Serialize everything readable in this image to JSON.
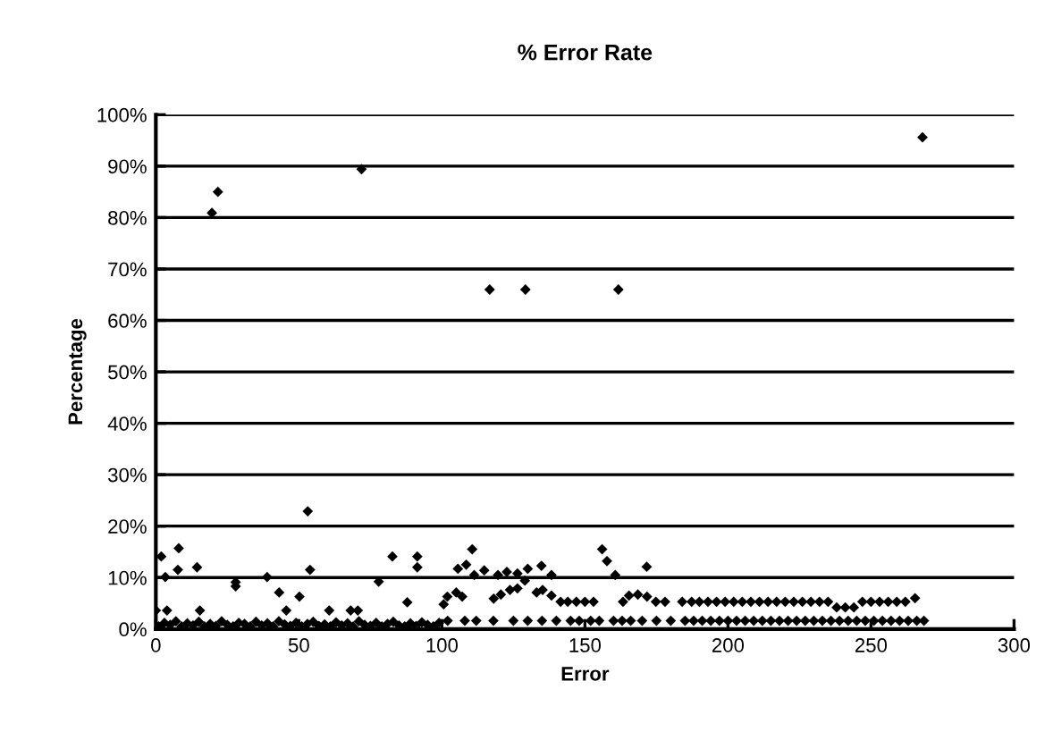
{
  "chart_data": {
    "type": "scatter",
    "title": "% Error Rate",
    "xlabel": "Error",
    "ylabel": "Percentage",
    "xlim": [
      0,
      300
    ],
    "xticks": [
      0,
      50,
      100,
      150,
      200,
      250,
      300
    ],
    "ylim": [
      0,
      100
    ],
    "yticks": [
      {
        "value": 0,
        "label": "0%"
      },
      {
        "value": 10,
        "label": "10%"
      },
      {
        "value": 20,
        "label": "20%"
      },
      {
        "value": 30,
        "label": "30%"
      },
      {
        "value": 40,
        "label": "40%"
      },
      {
        "value": 50,
        "label": "50%"
      },
      {
        "value": 60,
        "label": "60%"
      },
      {
        "value": 70,
        "label": "70%"
      },
      {
        "value": 80,
        "label": "80%"
      },
      {
        "value": 90,
        "label": "90%"
      },
      {
        "value": 100,
        "label": "100%"
      }
    ],
    "grid": "y",
    "legend": false,
    "marker": "diamond",
    "series": [
      {
        "color": "#000000",
        "x": [
          19.6,
          21.7,
          71.9,
          268,
          116.7,
          129.2,
          161.7,
          53.1,
          1.9,
          3.3,
          8,
          7.7,
          14.4,
          27.9,
          27.9,
          38.9,
          43.1,
          50.2,
          53.9,
          82.7,
          77.9,
          91.4,
          91.4,
          87.9,
          0,
          3.9,
          15.4,
          45.6,
          60.6,
          68.1,
          70.6,
          100.6,
          110.6,
          105.6,
          108.5,
          111.3,
          114.8,
          119.6,
          122.7,
          126.4,
          130,
          134.8,
          138.3,
          156,
          157.7,
          160.6,
          171.6,
          101.9,
          105,
          107.1,
          118.1,
          120.6,
          123.8,
          126.4,
          129,
          133.1,
          135.2,
          138.3,
          141.5,
          144,
          147,
          150,
          153,
          163.3,
          165.4,
          168.5,
          171.7,
          174.8,
          178,
          184,
          187.3,
          190,
          193,
          196,
          199,
          202,
          205,
          208,
          211,
          214,
          217,
          220,
          223,
          226,
          229,
          232,
          235,
          238,
          241,
          244,
          247,
          250,
          253,
          256,
          259,
          262,
          265.4,
          1,
          3,
          5,
          7,
          9,
          11,
          13,
          15,
          17,
          19,
          21,
          23,
          25,
          27,
          29,
          31,
          33,
          35,
          37,
          39,
          41,
          43,
          45,
          47,
          49,
          51,
          53,
          55,
          57,
          59,
          61,
          63,
          65,
          67,
          69,
          71,
          73,
          75,
          77,
          79,
          81,
          83,
          85,
          87,
          89,
          91,
          93,
          95,
          97,
          99,
          102,
          108,
          112,
          118,
          125,
          130,
          135,
          140,
          145,
          148,
          152,
          155,
          160,
          163,
          166,
          170,
          175,
          180,
          185,
          188,
          191,
          194,
          197,
          200,
          203,
          206,
          209,
          212,
          215,
          218,
          221,
          224,
          227,
          230,
          233,
          236,
          239,
          242,
          245,
          248,
          251,
          254,
          257,
          260,
          263,
          266,
          268.5
        ],
        "values": [
          80.9,
          85,
          89.4,
          95.6,
          66,
          66,
          66,
          22.9,
          14.1,
          10.1,
          15.7,
          11.5,
          12,
          9.1,
          8.3,
          10.1,
          7.1,
          6.3,
          11.5,
          14.1,
          9.2,
          14.1,
          12,
          5.2,
          3.6,
          3.6,
          3.6,
          3.6,
          3.6,
          3.6,
          3.6,
          4.8,
          15.5,
          11.7,
          12.5,
          10.5,
          11.4,
          10.5,
          11.1,
          10.8,
          11.7,
          12.3,
          10.5,
          15.5,
          13.2,
          10.5,
          12.1,
          6.3,
          7.1,
          6.3,
          5.9,
          6.7,
          7.6,
          7.9,
          9.4,
          7.1,
          7.6,
          6.5,
          5.3,
          5.3,
          5.3,
          5.3,
          5.3,
          5.3,
          6.5,
          6.7,
          6.3,
          5.3,
          5.3,
          5.3,
          5.3,
          5.3,
          5.3,
          5.3,
          5.3,
          5.3,
          5.3,
          5.3,
          5.3,
          5.3,
          5.3,
          5.3,
          5.3,
          5.3,
          5.3,
          5.3,
          5.3,
          4.2,
          4.2,
          4.2,
          5.3,
          5.3,
          5.3,
          5.3,
          5.3,
          5.3,
          6,
          0.5,
          1.2,
          0.8,
          1.5,
          0.5,
          1.1,
          0.7,
          1.4,
          0.5,
          1.0,
          0.6,
          1.5,
          0.8,
          0.5,
          1.2,
          1.0,
          0.5,
          1.4,
          0.7,
          1.1,
          0.5,
          1.5,
          0.9,
          0.6,
          1.2,
          0.5,
          1.0,
          1.4,
          0.6,
          0.9,
          0.5,
          1.3,
          0.7,
          1.1,
          0.5,
          1.5,
          0.8,
          0.6,
          1.2,
          0.5,
          1.0,
          1.4,
          0.7,
          0.5,
          1.1,
          0.6,
          1.3,
          0.8,
          0.5,
          1.2,
          1.6,
          1.6,
          1.6,
          1.6,
          1.6,
          1.6,
          1.6,
          1.6,
          1.6,
          1.6,
          1.6,
          1.6,
          1.6,
          1.6,
          1.6,
          1.6,
          1.6,
          1.6,
          1.6,
          1.6,
          1.6,
          1.6,
          1.6,
          1.6,
          1.6,
          1.6,
          1.6,
          1.6,
          1.6,
          1.6,
          1.6,
          1.6,
          1.6,
          1.6,
          1.6,
          1.6,
          1.6,
          1.6,
          1.6,
          1.6,
          1.6,
          1.6,
          1.6,
          1.6,
          1.6,
          1.6,
          1.6
        ]
      }
    ]
  }
}
